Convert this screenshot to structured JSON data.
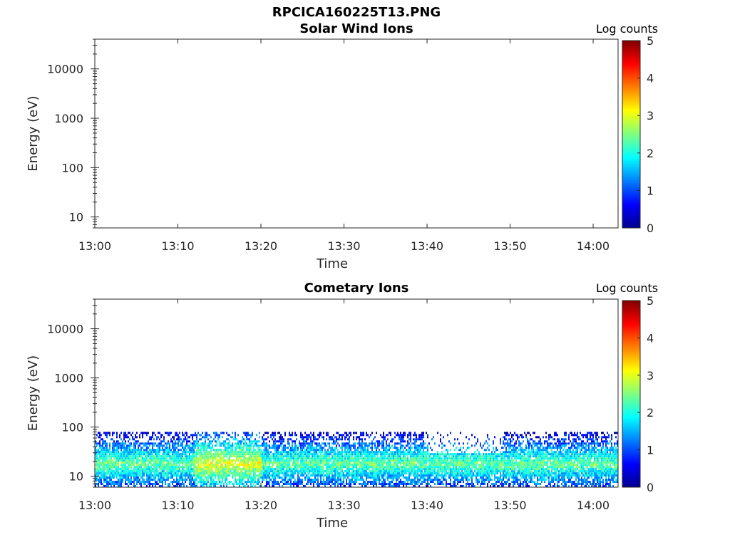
{
  "figure": {
    "title": "RPCICA160225T13.PNG"
  },
  "colorbar": {
    "label": "Log counts",
    "ticks": [
      "0",
      "1",
      "2",
      "3",
      "4",
      "5"
    ],
    "range": [
      0,
      5
    ],
    "colormap": "jet"
  },
  "chart_data": [
    {
      "type": "heatmap",
      "title": "Solar Wind Ions",
      "xlabel": "Time",
      "ylabel": "Energy (eV)",
      "x_ticks": [
        "13:00",
        "13:10",
        "13:20",
        "13:30",
        "13:40",
        "13:50",
        "14:00"
      ],
      "y_ticks": [
        "10",
        "100",
        "1000",
        "10000"
      ],
      "y_scale": "log",
      "ylim": [
        6,
        40000
      ],
      "xlim": [
        "13:00",
        "14:03"
      ],
      "z_label": "Log counts",
      "z_range": [
        0,
        5
      ],
      "data": "none"
    },
    {
      "type": "heatmap",
      "title": "Cometary Ions",
      "xlabel": "Time",
      "ylabel": "Energy (eV)",
      "x_ticks": [
        "13:00",
        "13:10",
        "13:20",
        "13:30",
        "13:40",
        "13:50",
        "14:00"
      ],
      "y_ticks": [
        "10",
        "100",
        "1000",
        "10000"
      ],
      "y_scale": "log",
      "ylim": [
        6,
        40000
      ],
      "xlim": [
        "13:00",
        "14:03"
      ],
      "z_label": "Log counts",
      "z_range": [
        0,
        5
      ],
      "energy_band": {
        "min_eV": 6,
        "max_eV": 80,
        "peak_eV": 18,
        "peak_log_counts": 2.8,
        "enhanced_period": [
          "13:12",
          "13:20"
        ],
        "sparse_period": [
          "13:40",
          "13:49"
        ]
      }
    }
  ]
}
